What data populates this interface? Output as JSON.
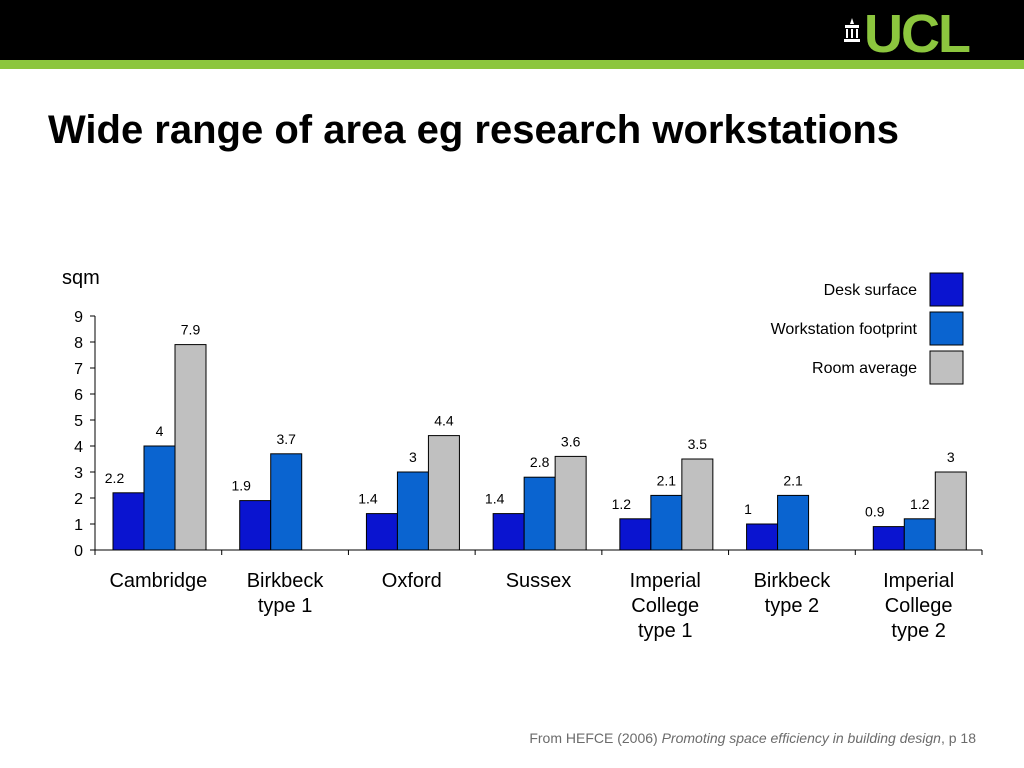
{
  "header": {
    "logo_text": "UCL",
    "colors": {
      "bar": "#000000",
      "accent": "#8cc63e"
    }
  },
  "slide": {
    "title": "Wide range of area eg research workstations"
  },
  "chart_data": {
    "type": "bar",
    "ylabel": "sqm",
    "ylim": [
      0,
      9
    ],
    "yticks": [
      0,
      1,
      2,
      3,
      4,
      5,
      6,
      7,
      8,
      9
    ],
    "grid": false,
    "legend_position": "top-right",
    "categories": [
      [
        "Cambridge"
      ],
      [
        "Birkbeck",
        "type 1"
      ],
      [
        "Oxford"
      ],
      [
        "Sussex"
      ],
      [
        "Imperial",
        "College",
        "type 1"
      ],
      [
        "Birkbeck",
        "type 2"
      ],
      [
        "Imperial",
        "College",
        "type 2"
      ]
    ],
    "series": [
      {
        "name": "Desk surface",
        "color": "#0a14d0",
        "values": [
          2.2,
          1.9,
          1.4,
          1.4,
          1.2,
          1,
          0.9
        ]
      },
      {
        "name": "Workstation footprint",
        "color": "#0a64d0",
        "values": [
          4,
          3.7,
          3,
          2.8,
          2.1,
          2.1,
          1.2
        ]
      },
      {
        "name": "Room average",
        "color": "#c0c0c0",
        "values": [
          7.9,
          null,
          4.4,
          3.6,
          3.5,
          null,
          3
        ]
      }
    ],
    "data_labels": [
      [
        "2.2",
        "1.9",
        "1.4",
        "1.4",
        "1.2",
        "1",
        "0.9"
      ],
      [
        "4",
        "3.7",
        "3",
        "2.8",
        "2.1",
        "2.1",
        "1.2"
      ],
      [
        "7.9",
        null,
        "4.4",
        "3.6",
        "3.5",
        null,
        "3"
      ]
    ]
  },
  "footer": {
    "source_prefix": "From HEFCE (2006) ",
    "source_title": "Promoting space efficiency in building design",
    "source_suffix": ", p 18"
  }
}
